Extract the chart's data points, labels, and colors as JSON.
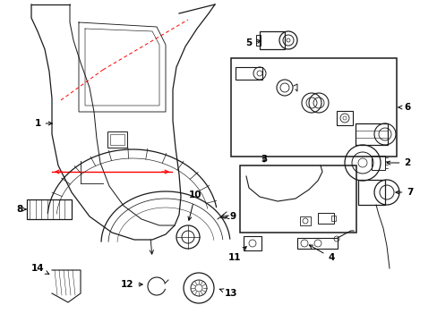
{
  "bg_color": "#ffffff",
  "fg_color": "#1a1a1a",
  "figsize": [
    4.89,
    3.6
  ],
  "dpi": 100,
  "xlim": [
    0,
    489
  ],
  "ylim": [
    0,
    360
  ]
}
